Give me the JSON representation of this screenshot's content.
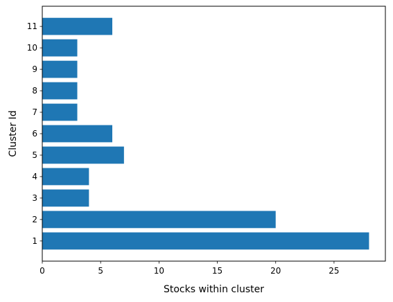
{
  "chart_data": {
    "type": "bar",
    "orientation": "horizontal",
    "title": "",
    "xlabel": "Stocks within cluster",
    "ylabel": "Cluster Id",
    "categories": [
      "1",
      "2",
      "3",
      "4",
      "5",
      "6",
      "7",
      "8",
      "9",
      "10",
      "11"
    ],
    "values": [
      28,
      20,
      4,
      4,
      7,
      6,
      3,
      3,
      3,
      3,
      6
    ],
    "xlim": [
      0,
      29.4
    ],
    "xticks": [
      0,
      5,
      10,
      15,
      20,
      25
    ],
    "bar_color": "#1f77b4",
    "grid": false,
    "legend": false
  }
}
